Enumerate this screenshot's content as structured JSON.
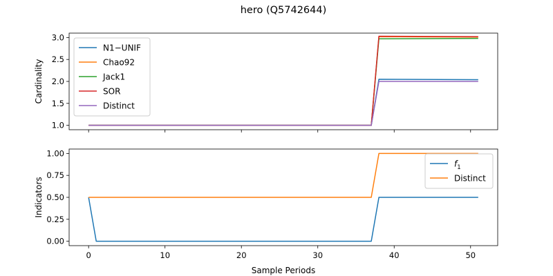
{
  "figure": {
    "title": "hero (Q5742644)",
    "xlabel": "Sample Periods"
  },
  "chart_data": [
    {
      "type": "line",
      "ylabel": "Cardinality",
      "xlim": [
        -2.55,
        53.55
      ],
      "ylim": [
        0.9,
        3.1
      ],
      "yticks": [
        1.0,
        1.5,
        2.0,
        2.5,
        3.0
      ],
      "ytick_labels": [
        "1.0",
        "1.5",
        "2.0",
        "2.5",
        "3.0"
      ],
      "xticks": [
        0,
        10,
        20,
        30,
        40,
        50
      ],
      "show_xtick_labels": false,
      "grid": false,
      "legend_position": "upper-left",
      "series": [
        {
          "name": "N1−UNIF",
          "color": "#1f77b4",
          "x": [
            0,
            37,
            38,
            51
          ],
          "y": [
            1.0,
            1.0,
            2.05,
            2.04
          ]
        },
        {
          "name": "Chao92",
          "color": "#ff7f0e",
          "x": [
            0,
            37,
            38,
            51
          ],
          "y": [
            1.0,
            1.0,
            3.02,
            3.01
          ]
        },
        {
          "name": "Jack1",
          "color": "#2ca02c",
          "x": [
            0,
            37,
            38,
            51
          ],
          "y": [
            1.0,
            1.0,
            2.97,
            2.98
          ]
        },
        {
          "name": "SOR",
          "color": "#d62728",
          "x": [
            0,
            37,
            38,
            51
          ],
          "y": [
            1.0,
            1.0,
            3.03,
            3.02
          ]
        },
        {
          "name": "Distinct",
          "color": "#9467bd",
          "x": [
            0,
            37,
            38,
            51
          ],
          "y": [
            1.0,
            1.0,
            2.0,
            2.0
          ]
        }
      ]
    },
    {
      "type": "line",
      "ylabel": "Indicators",
      "xlim": [
        -2.55,
        53.55
      ],
      "ylim": [
        -0.05,
        1.05
      ],
      "yticks": [
        0.0,
        0.25,
        0.5,
        0.75,
        1.0
      ],
      "ytick_labels": [
        "0.00",
        "0.25",
        "0.50",
        "0.75",
        "1.00"
      ],
      "xticks": [
        0,
        10,
        20,
        30,
        40,
        50
      ],
      "xtick_labels": [
        "0",
        "10",
        "20",
        "30",
        "40",
        "50"
      ],
      "show_xtick_labels": true,
      "grid": false,
      "legend_position": "upper-right",
      "series": [
        {
          "name": "f1",
          "label_main": "f",
          "label_sub": "1",
          "color": "#1f77b4",
          "x": [
            0,
            1,
            37,
            38,
            51
          ],
          "y": [
            0.5,
            0.0,
            0.0,
            0.5,
            0.5
          ]
        },
        {
          "name": "Distinct",
          "color": "#ff7f0e",
          "x": [
            0,
            37,
            38,
            51
          ],
          "y": [
            0.5,
            0.5,
            1.0,
            1.0
          ]
        }
      ]
    }
  ]
}
